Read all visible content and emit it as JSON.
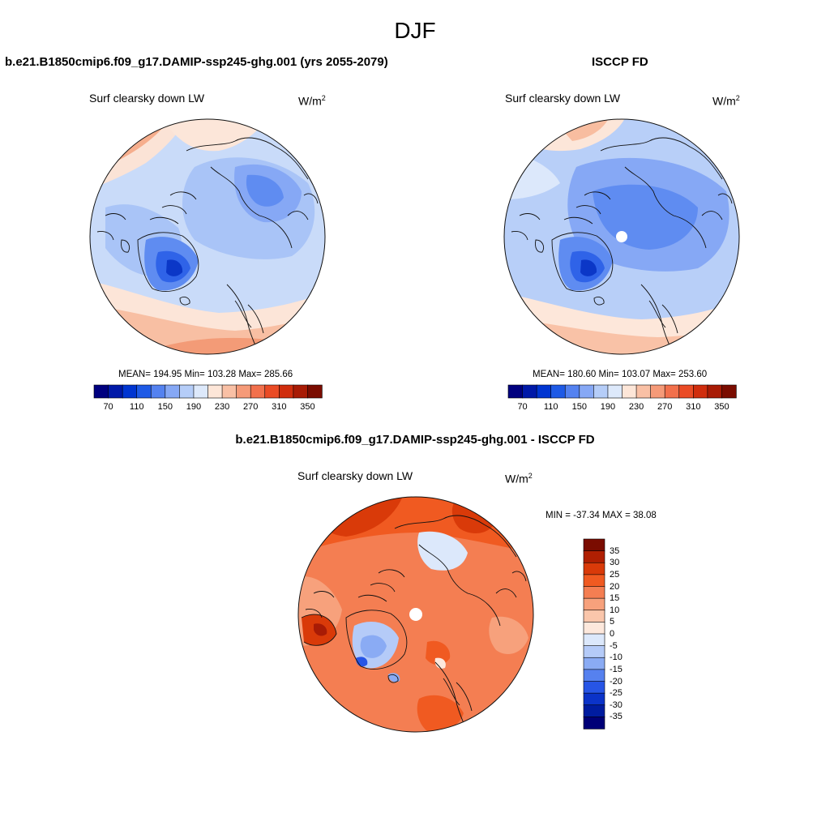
{
  "page": {
    "title": "DJF"
  },
  "panels": [
    {
      "case": "b.e21.B1850cmip6.f09_g17.DAMIP-ssp245-ghg.001 (yrs 2055-2079)",
      "variable": "Surf clearsky down LW",
      "units_base": "W/m",
      "units_exp": "2",
      "stats": "MEAN= 194.95  Min= 103.28  Max= 285.66"
    },
    {
      "case": "ISCCP FD",
      "variable": "Surf clearsky down LW",
      "units_base": "W/m",
      "units_exp": "2",
      "stats": "MEAN= 180.60  Min= 103.07  Max= 253.60"
    },
    {
      "case": "b.e21.B1850cmip6.f09_g17.DAMIP-ssp245-ghg.001 - ISCCP FD",
      "variable": "Surf clearsky down LW",
      "units_base": "W/m",
      "units_exp": "2",
      "stats": "MIN = -37.34 MAX =  38.08"
    }
  ],
  "colorbar_top": {
    "colors": [
      "#00007f",
      "#0019a8",
      "#0035d1",
      "#1e5ae6",
      "#5482f0",
      "#86a8f5",
      "#b5cdf8",
      "#dde9fb",
      "#fde6d8",
      "#f9c0a5",
      "#f59a78",
      "#f2704c",
      "#ea4b25",
      "#d02d0d",
      "#a81b05",
      "#7a0c00"
    ],
    "labels": [
      "70",
      "110",
      "150",
      "190",
      "230",
      "270",
      "310",
      "350"
    ]
  },
  "colorbar_diff": {
    "colors": [
      "#7a0c00",
      "#b01f02",
      "#d93a09",
      "#f05a21",
      "#f47e52",
      "#f7a17c",
      "#fac6ab",
      "#fde8dc",
      "#dce8fb",
      "#b5cbf8",
      "#8aabf4",
      "#5681ef",
      "#2755e6",
      "#0b33c9",
      "#001ca0",
      "#000077"
    ],
    "labels": [
      "35",
      "30",
      "25",
      "20",
      "15",
      "10",
      "5",
      "0",
      "-5",
      "-10",
      "-15",
      "-20",
      "-25",
      "-30",
      "-35"
    ]
  },
  "colors": {
    "land_outline": "#111111",
    "pole_hole": "#ffffff"
  }
}
